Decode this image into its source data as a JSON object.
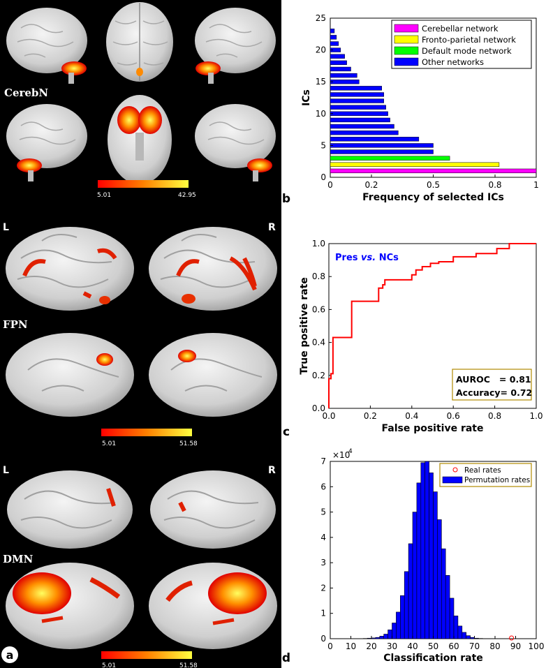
{
  "panel_a": {
    "letter": "a",
    "networks": [
      {
        "label": "CerebN",
        "scale_min": "5.01",
        "scale_max": "42.95"
      },
      {
        "label": "FPN",
        "scale_min": "5.01",
        "scale_max": "51.58",
        "left": "L",
        "right": "R"
      },
      {
        "label": "DMN",
        "scale_min": "5.01",
        "scale_max": "51.58",
        "left": "L",
        "right": "R"
      }
    ]
  },
  "chart_data": [
    {
      "panel": "b",
      "type": "bar",
      "orientation": "horizontal",
      "xlabel": "Frequency of selected ICs",
      "ylabel": "ICs",
      "xlim": [
        0,
        1
      ],
      "ylim": [
        0,
        25
      ],
      "xticks": [
        "0",
        "0.2",
        "0.5",
        "0.8",
        "1"
      ],
      "xtick_values": [
        0,
        0.2,
        0.5,
        0.8,
        1
      ],
      "yticks": [
        "0",
        "5",
        "10",
        "15",
        "20",
        "25"
      ],
      "legend_position": "top-right",
      "series": [
        {
          "name": "Cerebellar network",
          "color": "#ff00ff",
          "ics": [
            1
          ],
          "values": [
            1.0
          ]
        },
        {
          "name": "Fronto-parietal network",
          "color": "#ffff00",
          "ics": [
            2
          ],
          "values": [
            0.82
          ]
        },
        {
          "name": "Default mode network",
          "color": "#00ff00",
          "ics": [
            3
          ],
          "values": [
            0.58
          ]
        },
        {
          "name": "Other networks",
          "color": "#0000ff",
          "ics": [
            4,
            5,
            6,
            7,
            8,
            9,
            10,
            11,
            12,
            13,
            14,
            15,
            16,
            17,
            18,
            19,
            20,
            21,
            22,
            23
          ],
          "values": [
            0.5,
            0.5,
            0.43,
            0.33,
            0.31,
            0.29,
            0.28,
            0.27,
            0.26,
            0.26,
            0.25,
            0.14,
            0.13,
            0.1,
            0.08,
            0.07,
            0.05,
            0.04,
            0.03,
            0.02
          ]
        }
      ]
    },
    {
      "panel": "c",
      "type": "line",
      "xlabel": "False positive rate",
      "ylabel": "True positive rate",
      "xlim": [
        0,
        1
      ],
      "ylim": [
        0,
        1
      ],
      "xticks": [
        "0.0",
        "0.2",
        "0.4",
        "0.6",
        "0.8",
        "1.0"
      ],
      "yticks": [
        "0.0",
        "0.2",
        "0.4",
        "0.6",
        "0.8",
        "1.0"
      ],
      "annotation": {
        "prefix": "Pres ",
        "italic": "vs.",
        "suffix": " NCs"
      },
      "metrics": [
        "AUROC   = 0.81",
        "Accuracy= 0.72"
      ],
      "line_color": "#ff0000",
      "x": [
        0,
        0,
        0.01,
        0.01,
        0.02,
        0.02,
        0.11,
        0.11,
        0.24,
        0.24,
        0.26,
        0.26,
        0.27,
        0.27,
        0.4,
        0.4,
        0.42,
        0.42,
        0.45,
        0.45,
        0.49,
        0.49,
        0.53,
        0.53,
        0.6,
        0.6,
        0.71,
        0.71,
        0.81,
        0.81,
        0.87,
        0.87,
        1.0
      ],
      "y": [
        0,
        0.18,
        0.18,
        0.21,
        0.21,
        0.43,
        0.43,
        0.65,
        0.65,
        0.73,
        0.73,
        0.75,
        0.75,
        0.78,
        0.78,
        0.81,
        0.81,
        0.84,
        0.84,
        0.86,
        0.86,
        0.88,
        0.88,
        0.89,
        0.89,
        0.92,
        0.92,
        0.94,
        0.94,
        0.97,
        0.97,
        1.0,
        1.0
      ]
    },
    {
      "panel": "d",
      "type": "bar",
      "subtype": "histogram",
      "xlabel": "Classification rate",
      "ylabel": "",
      "multiplier": "×10",
      "multiplier_exp": "4",
      "xlim": [
        0,
        100
      ],
      "ylim": [
        0,
        7
      ],
      "xticks": [
        "0",
        "10",
        "20",
        "30",
        "40",
        "50",
        "60",
        "70",
        "80",
        "90",
        "100"
      ],
      "yticks": [
        "0",
        "1",
        "2",
        "3",
        "4",
        "5",
        "6",
        "7"
      ],
      "legend_position": "top-right",
      "legend": [
        {
          "name": "Real rates",
          "color": "#ff0000",
          "marker": "circle"
        },
        {
          "name": "Permutation rates",
          "color": "#0000ff",
          "marker": "bar"
        }
      ],
      "bin_width": 2,
      "bins": [
        16,
        18,
        20,
        22,
        24,
        26,
        28,
        30,
        32,
        34,
        36,
        38,
        40,
        42,
        44,
        46,
        48,
        50,
        52,
        54,
        56,
        58,
        60,
        62,
        64,
        66,
        68,
        70,
        72
      ],
      "values": [
        0.01,
        0.02,
        0.03,
        0.05,
        0.1,
        0.18,
        0.35,
        0.62,
        1.05,
        1.7,
        2.65,
        3.75,
        5.0,
        6.15,
        6.95,
        7.0,
        6.55,
        5.8,
        4.7,
        3.55,
        2.5,
        1.6,
        0.9,
        0.5,
        0.25,
        0.12,
        0.05,
        0.02,
        0.01
      ],
      "real_rate": 88,
      "real_rate_value": 0
    }
  ]
}
